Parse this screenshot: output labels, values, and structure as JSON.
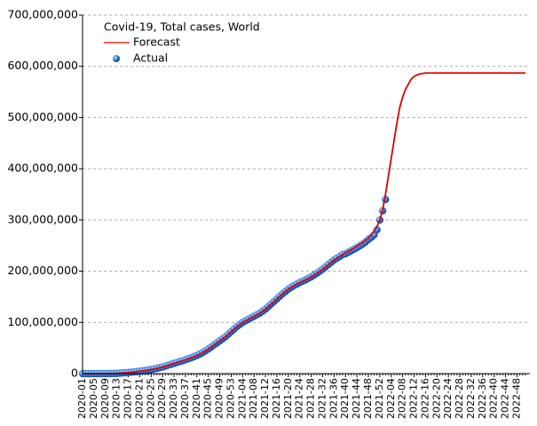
{
  "chart_data": {
    "type": "line",
    "title": "Covid-19, Total cases, World",
    "legend": "upper-left",
    "grid": true,
    "ylim": [
      0,
      700000000
    ],
    "yticks": [
      0,
      {
        "value": 100000000,
        "label": "100,000,000"
      },
      {
        "value": 200000000,
        "label": "200,000,000"
      },
      {
        "value": 300000000,
        "label": "300,000,000"
      },
      {
        "value": 400000000,
        "label": "400,000,000"
      },
      {
        "value": 500000000,
        "label": "500,000,000"
      },
      {
        "value": 600000000,
        "label": "600,000,000"
      },
      {
        "value": 700000000,
        "label": "700,000,000"
      }
    ],
    "categories": [
      "2020-01",
      null,
      null,
      null,
      "2020-05",
      null,
      null,
      null,
      "2020-09",
      null,
      null,
      null,
      "2020-13",
      null,
      null,
      null,
      "2020-17",
      null,
      null,
      null,
      "2020-21",
      null,
      null,
      null,
      "2020-25",
      null,
      null,
      null,
      "2020-29",
      null,
      null,
      null,
      "2020-33",
      null,
      null,
      null,
      "2020-37",
      null,
      null,
      null,
      "2020-41",
      null,
      null,
      null,
      "2020-45",
      null,
      null,
      null,
      "2020-49",
      null,
      null,
      null,
      "2020-53",
      null,
      null,
      null,
      "2021-04",
      null,
      null,
      null,
      "2021-08",
      null,
      null,
      null,
      "2021-12",
      null,
      null,
      null,
      "2021-16",
      null,
      null,
      null,
      "2021-20",
      null,
      null,
      null,
      "2021-24",
      null,
      null,
      null,
      "2021-28",
      null,
      null,
      null,
      "2021-32",
      null,
      null,
      null,
      "2021-36",
      null,
      null,
      null,
      "2021-40",
      null,
      null,
      null,
      "2021-44",
      null,
      null,
      null,
      "2021-48",
      null,
      null,
      null,
      "2021-52",
      null,
      null,
      null,
      "2022-04",
      null,
      null,
      null,
      "2022-08",
      null,
      null,
      null,
      "2022-12",
      null,
      null,
      null,
      "2022-16",
      null,
      null,
      null,
      "2022-20",
      null,
      null,
      null,
      "2022-24",
      null,
      null,
      null,
      "2022-28",
      null,
      null,
      null,
      "2022-32",
      null,
      null,
      null,
      "2022-36",
      null,
      null,
      null,
      "2022-40",
      null,
      null,
      null,
      "2022-44",
      null,
      null,
      null,
      "2022-48",
      null,
      null,
      null
    ],
    "series": [
      {
        "name": "Forecast",
        "type": "line",
        "color": "#dd0000",
        "values": [
          0,
          0,
          0,
          0,
          0,
          0,
          100000.0,
          100000.0,
          100000.0,
          150000.0,
          200000.0,
          350000.0,
          500000.0,
          800000.0,
          1200000.0,
          1700000.0,
          2200000.0,
          2700000.0,
          3300000.0,
          4000000.0,
          4700000.0,
          5400000.0,
          6200000.0,
          7100000.0,
          8000000.0,
          9100000.0,
          10200000.0,
          11600000.0,
          13000000.0,
          14700000.0,
          16500000.0,
          18200000.0,
          20000000.0,
          21700000.0,
          23500000.0,
          25200000.0,
          27000000.0,
          29000000.0,
          31000000.0,
          33200000.0,
          35500000.0,
          38200000.0,
          41000000.0,
          44500000.0,
          48000000.0,
          52000000.0,
          56000000.0,
          60000000.0,
          64000000.0,
          68000000.0,
          72000000.0,
          77000000.0,
          82000000.0,
          87000000.0,
          92000000.0,
          96000000.0,
          100000000.0,
          103000000.0,
          106000000.0,
          109000000.0,
          112000000.0,
          115000000.0,
          118000000.0,
          122000000.0,
          126000000.0,
          131000000.0,
          136000000.0,
          141000000.0,
          146000000.0,
          151000000.0,
          156000000.0,
          160500000.0,
          165000000.0,
          168500000.0,
          172000000.0,
          175000000.0,
          178000000.0,
          180500000.0,
          183000000.0,
          186000000.0,
          189000000.0,
          192500000.0,
          196000000.0,
          200000000.0,
          204000000.0,
          208500000.0,
          213000000.0,
          217500000.0,
          222000000.0,
          225500000.0,
          229000000.0,
          232500000.0,
          236000000.0,
          239000000.0,
          242000000.0,
          245500000.0,
          249000000.0,
          252500000.0,
          256000000.0,
          260500000.0,
          265000000.0,
          270000000.0,
          278000000.0,
          287000000.0,
          300000000.0,
          320000000.0,
          350000000.0,
          385000000.0,
          420000000.0,
          455000000.0,
          490000000.0,
          520000000.0,
          540000000.0,
          555000000.0,
          565000000.0,
          575000000.0,
          580000000.0,
          583000000.0,
          585000000.0,
          586000000.0,
          587000000.0,
          587000000.0,
          587000000.0,
          587000000.0,
          587000000.0,
          587000000.0,
          587000000.0,
          587000000.0,
          587000000.0,
          587000000.0,
          587000000.0,
          587000000.0,
          587000000.0,
          587000000.0,
          587000000.0,
          587000000.0,
          587000000.0,
          587000000.0,
          587000000.0,
          587000000.0,
          587000000.0,
          587000000.0,
          587000000.0,
          587000000.0,
          587000000.0,
          587000000.0,
          587000000.0,
          587000000.0,
          587000000.0,
          587000000.0,
          587000000.0,
          587000000.0,
          587000000.0,
          587000000.0,
          587000000.0,
          587000000.0
        ]
      },
      {
        "name": "Actual",
        "type": "scatter",
        "color": "#1a5fd0",
        "values": [
          0,
          0,
          0,
          0,
          0,
          0,
          100000.0,
          100000.0,
          100000.0,
          150000.0,
          200000.0,
          350000.0,
          500000.0,
          800000.0,
          1200000.0,
          1700000.0,
          2200000.0,
          2700000.0,
          3300000.0,
          4000000.0,
          4700000.0,
          5400000.0,
          6200000.0,
          7100000.0,
          8000000.0,
          9100000.0,
          10200000.0,
          11600000.0,
          13000000.0,
          14700000.0,
          16500000.0,
          18200000.0,
          20000000.0,
          21700000.0,
          23500000.0,
          25200000.0,
          27000000.0,
          29000000.0,
          31000000.0,
          33200000.0,
          35500000.0,
          38200000.0,
          41000000.0,
          44500000.0,
          48000000.0,
          52000000.0,
          56000000.0,
          60000000.0,
          64000000.0,
          68000000.0,
          72000000.0,
          77000000.0,
          82000000.0,
          87000000.0,
          92000000.0,
          96000000.0,
          100000000.0,
          103000000.0,
          106000000.0,
          109000000.0,
          112000000.0,
          115000000.0,
          118000000.0,
          122000000.0,
          126000000.0,
          131000000.0,
          136000000.0,
          141000000.0,
          146000000.0,
          151000000.0,
          156000000.0,
          160500000.0,
          165000000.0,
          168500000.0,
          172000000.0,
          175000000.0,
          178000000.0,
          180500000.0,
          183000000.0,
          186000000.0,
          189000000.0,
          192500000.0,
          196000000.0,
          200000000.0,
          204000000.0,
          208500000.0,
          213000000.0,
          217500000.0,
          222000000.0,
          225500000.0,
          229000000.0,
          232500000.0,
          234000000.0,
          237000000.0,
          240000000.0,
          243000000.0,
          246000000.0,
          249500000.0,
          253000000.0,
          257000000.0,
          262000000.0,
          266000000.0,
          271000000.0,
          281000000.0,
          300000000.0,
          318000000.0,
          340000000.0
        ]
      }
    ]
  }
}
